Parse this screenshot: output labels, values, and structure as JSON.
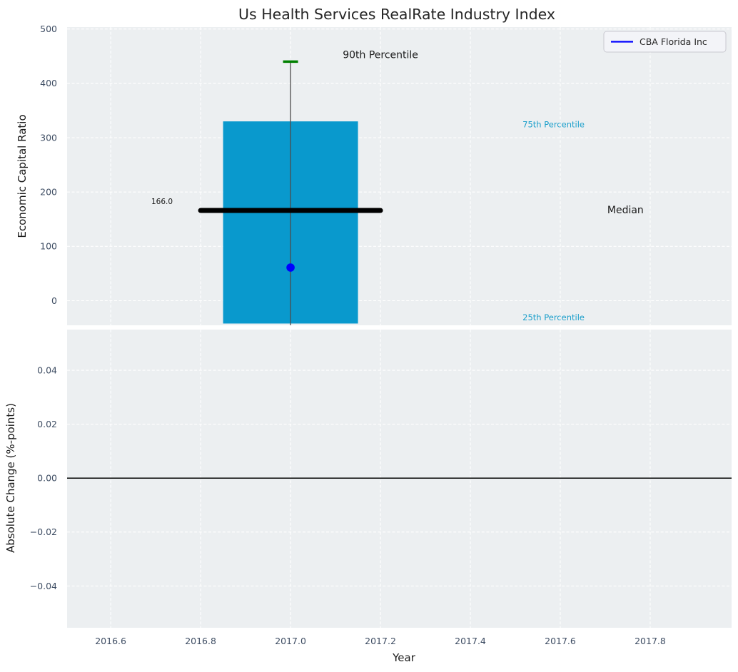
{
  "title": "Us Health Services RealRate Industry Index",
  "chart_data": {
    "type": "box",
    "title": "Us Health Services RealRate Industry Index",
    "xlabel": "Year",
    "legend": {
      "position": "upper right",
      "entries": [
        {
          "label": "CBA Florida Inc",
          "color": "#0000ff"
        }
      ]
    },
    "x_axis": {
      "xlim": [
        2016.503,
        2017.981
      ],
      "tick_values": [
        2016.6,
        2016.8,
        2017.0,
        2017.2,
        2017.4,
        2017.6,
        2017.8
      ],
      "tick_labels": [
        "2016.6",
        "2016.8",
        "2017.0",
        "2017.2",
        "2017.4",
        "2017.6",
        "2017.8"
      ]
    },
    "top_panel": {
      "ylabel": "Economic Capital Ratio",
      "ylim": [
        -45.3,
        503.5
      ],
      "ytick_values": [
        0,
        100,
        200,
        300,
        400,
        500
      ],
      "ytick_labels": [
        "0",
        "100",
        "200",
        "300",
        "400",
        "500"
      ],
      "grid": true,
      "box": {
        "x": 2017.0,
        "box_halfwidth": 0.15,
        "median_line_halfwidth": 0.2,
        "p90": 440,
        "p75": 330,
        "median": 166.0,
        "p25": -42,
        "whisker_low_visible": -46,
        "box_color": "#0999cd",
        "median_color": "#000000",
        "whisker_color": "#4d4d4d",
        "cap_color": "#008000"
      },
      "company_point": {
        "label": "CBA Florida Inc",
        "x": 2017.0,
        "value": 61,
        "color": "#0000ff"
      },
      "annotations": [
        {
          "id": "90th-percentile",
          "text": "90th Percentile",
          "x": 2017.2,
          "value": 453,
          "color": "#1a1a1a",
          "size": 14,
          "anchor": "middle"
        },
        {
          "id": "75th-percentile",
          "text": "75th Percentile",
          "x": 2017.585,
          "value": 324,
          "color": "#1c9fcb",
          "size": 11.5,
          "anchor": "middle"
        },
        {
          "id": "median",
          "text": "Median",
          "x": 2017.745,
          "value": 167,
          "color": "#1a1a1a",
          "size": 14,
          "anchor": "middle"
        },
        {
          "id": "25th-percentile",
          "text": "25th Percentile",
          "x": 2017.585,
          "value": -31,
          "color": "#1c9fcb",
          "size": 11.5,
          "anchor": "middle"
        },
        {
          "id": "median-value",
          "text": "166.0",
          "x": 2016.738,
          "value": 183,
          "color": "#1a1a1a",
          "size": 10.5,
          "anchor": "end"
        }
      ]
    },
    "bottom_panel": {
      "ylabel": "Absolute Change (%-points)",
      "ylim": [
        -0.0555,
        0.0551
      ],
      "ytick_values": [
        0.04,
        0.02,
        0.0,
        -0.02,
        -0.04
      ],
      "ytick_labels": [
        "0.04",
        "0.02",
        "0.00",
        "−0.02",
        "−0.04"
      ],
      "grid": true,
      "zero_line": 0.0,
      "zero_line_color": "#000000"
    },
    "colors": {
      "plot_bg": "#eceff1",
      "grid": "#ffffff",
      "tick_label": "#3e4d63",
      "axis_label": "#1a1a1a",
      "title": "#262626",
      "legend_bg": "#f3f4f8",
      "legend_border": "#c9c9d0",
      "legend_text": "#262626"
    }
  }
}
